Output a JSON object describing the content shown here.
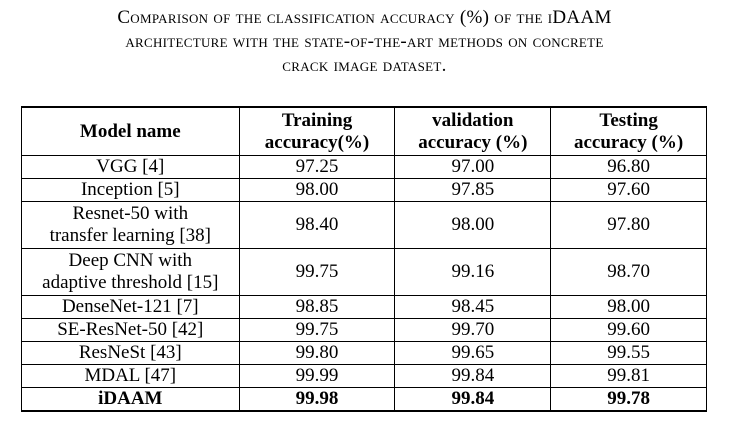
{
  "caption": {
    "line1": "Comparison of the classification accuracy (%) of the iDAAM",
    "line2": "architecture with the state-of-the-art methods on concrete",
    "line3": "crack image dataset."
  },
  "table": {
    "headers": {
      "model": "Model name",
      "training_l1": "Training",
      "training_l2": "accuracy(%)",
      "validation_l1": "validation",
      "validation_l2": "accuracy (%)",
      "testing_l1": "Testing",
      "testing_l2": "accuracy (%)"
    },
    "rows": [
      {
        "model_l1": "VGG [4]",
        "model_l2": "",
        "training": "97.25",
        "validation": "97.00",
        "testing": "96.80"
      },
      {
        "model_l1": "Inception [5]",
        "model_l2": "",
        "training": "98.00",
        "validation": "97.85",
        "testing": "97.60"
      },
      {
        "model_l1": "Resnet-50 with",
        "model_l2": "transfer learning [38]",
        "training": "98.40",
        "validation": "98.00",
        "testing": "97.80"
      },
      {
        "model_l1": "Deep CNN with",
        "model_l2": "adaptive threshold [15]",
        "training": "99.75",
        "validation": "99.16",
        "testing": "98.70"
      },
      {
        "model_l1": "DenseNet-121 [7]",
        "model_l2": "",
        "training": "98.85",
        "validation": "98.45",
        "testing": "98.00"
      },
      {
        "model_l1": "SE-ResNet-50 [42]",
        "model_l2": "",
        "training": "99.75",
        "validation": "99.70",
        "testing": "99.60"
      },
      {
        "model_l1": "ResNeSt [43]",
        "model_l2": "",
        "training": "99.80",
        "validation": "99.65",
        "testing": "99.55"
      },
      {
        "model_l1": "MDAL [47]",
        "model_l2": "",
        "training": "99.99",
        "validation": "99.84",
        "testing": "99.81"
      },
      {
        "model_l1": "iDAAM",
        "model_l2": "",
        "training": "99.98",
        "validation": "99.84",
        "testing": "99.78"
      }
    ]
  }
}
